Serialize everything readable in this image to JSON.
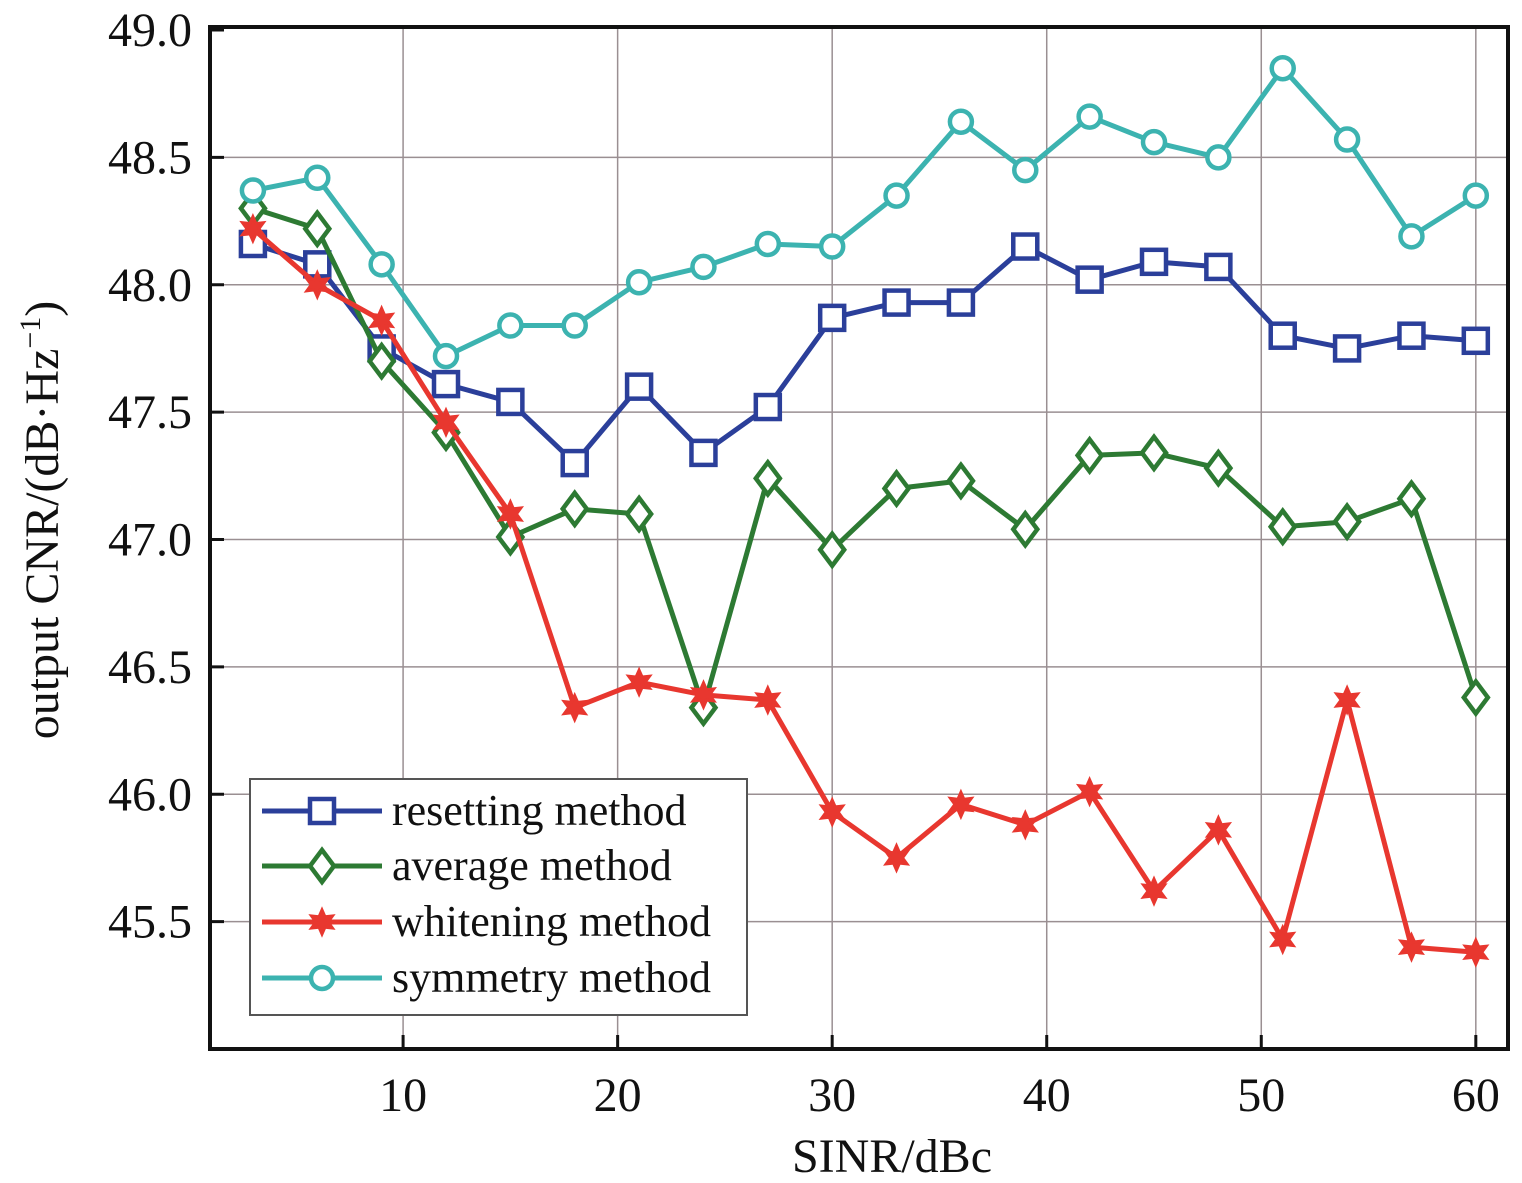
{
  "chart_data": {
    "type": "line",
    "title": "",
    "xlabel": "SINR/dBc",
    "ylabel": "output CNR/(dB·Hz",
    "ylabel_sup": "−1",
    "ylabel_close": ")",
    "xlim": [
      1,
      61.5
    ],
    "ylim": [
      45.0,
      49.0
    ],
    "xticks": [
      10,
      20,
      30,
      40,
      50,
      60
    ],
    "xtick_labels": [
      "10",
      "20",
      "30",
      "40",
      "50",
      "60"
    ],
    "yticks": [
      45.5,
      46.0,
      46.5,
      47.0,
      47.5,
      48.0,
      48.5,
      49.0
    ],
    "ytick_labels": [
      "45.5",
      "46.0",
      "46.5",
      "47.0",
      "47.5",
      "48.0",
      "48.5",
      "49.0"
    ],
    "grid": true,
    "legend_position": "bottom-left",
    "x": [
      3,
      6,
      9,
      12,
      15,
      18,
      21,
      24,
      27,
      30,
      33,
      36,
      39,
      42,
      45,
      48,
      51,
      54,
      57,
      60
    ],
    "series": [
      {
        "name": "resetting method",
        "color": "#2b3f9a",
        "marker": "square",
        "values": [
          48.16,
          48.08,
          47.75,
          47.61,
          47.54,
          47.3,
          47.6,
          47.34,
          47.52,
          47.87,
          47.93,
          47.93,
          48.15,
          48.02,
          48.09,
          48.07,
          47.8,
          47.75,
          47.8,
          47.78
        ]
      },
      {
        "name": "average method",
        "color": "#2d7a33",
        "marker": "diamond",
        "values": [
          48.3,
          48.22,
          47.7,
          47.42,
          47.01,
          47.12,
          47.1,
          46.34,
          47.24,
          46.96,
          47.2,
          47.23,
          47.04,
          47.33,
          47.34,
          47.28,
          47.05,
          47.07,
          47.16,
          46.38
        ]
      },
      {
        "name": "whitening method",
        "color": "#e8372f",
        "marker": "star",
        "values": [
          48.22,
          48.0,
          47.86,
          47.46,
          47.1,
          46.34,
          46.44,
          46.39,
          46.37,
          45.93,
          45.75,
          45.96,
          45.88,
          46.01,
          45.62,
          45.86,
          45.43,
          46.37,
          45.4,
          45.38
        ]
      },
      {
        "name": "symmetry method",
        "color": "#3cb3b0",
        "marker": "circle",
        "values": [
          48.37,
          48.42,
          48.08,
          47.72,
          47.84,
          47.84,
          48.01,
          48.07,
          48.16,
          48.15,
          48.35,
          48.64,
          48.45,
          48.66,
          48.56,
          48.5,
          48.85,
          48.57,
          48.19,
          48.35
        ]
      }
    ]
  }
}
